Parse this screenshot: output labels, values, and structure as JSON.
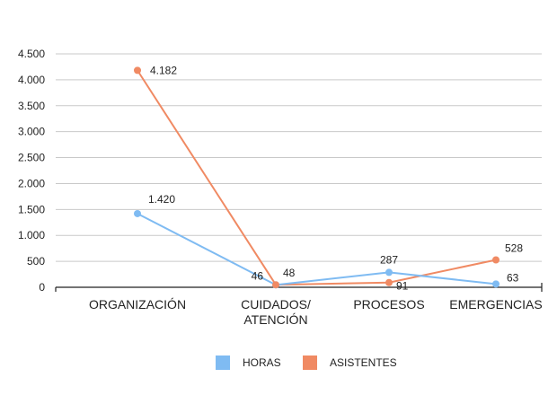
{
  "chart_data": {
    "type": "line",
    "categories": [
      "ORGANIZACIÓN",
      "CUIDADOS/ ATENCIÓN",
      "PROCESOS",
      "EMERGENCIAS"
    ],
    "category_lines": [
      [
        "ORGANIZACIÓN"
      ],
      [
        "CUIDADOS/",
        "ATENCIÓN"
      ],
      [
        "PROCESOS"
      ],
      [
        "EMERGENCIAS"
      ]
    ],
    "series": [
      {
        "name": "HORAS",
        "color": "#7fbbf2",
        "values": [
          1420,
          46,
          287,
          63
        ],
        "labels": [
          "1.420",
          "46",
          "287",
          "63"
        ]
      },
      {
        "name": "ASISTENTES",
        "color": "#f08a63",
        "values": [
          4182,
          48,
          91,
          528
        ],
        "labels": [
          "4.182",
          "48",
          "91",
          "528"
        ]
      }
    ],
    "ylim": [
      0,
      4500
    ],
    "yticks": [
      0,
      500,
      1000,
      1500,
      2000,
      2500,
      3000,
      3500,
      4000,
      4500
    ],
    "ytick_labels": [
      "0",
      "500",
      "1.000",
      "1.500",
      "2.000",
      "2.500",
      "3.000",
      "3.500",
      "4.000",
      "4.500"
    ],
    "grid": true,
    "legend_position": "bottom",
    "title": "",
    "xlabel": "",
    "ylabel": ""
  }
}
